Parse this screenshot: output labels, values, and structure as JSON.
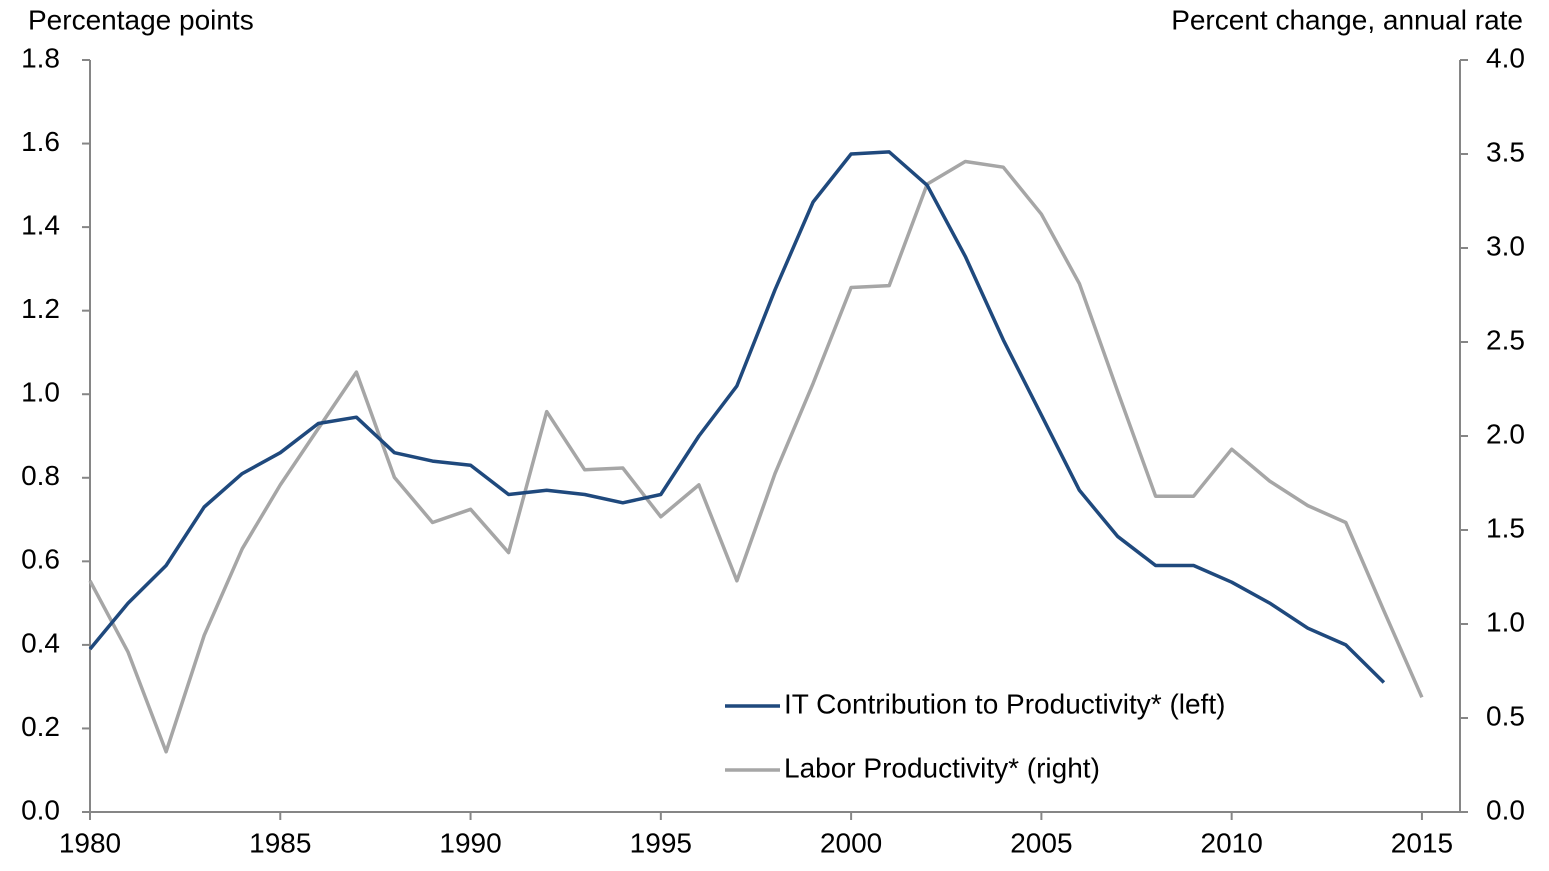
{
  "chart_data": {
    "type": "line",
    "y_label": "Percentage points",
    "y2_label": "Percent change, annual rate",
    "x": [
      1980,
      1981,
      1982,
      1983,
      1984,
      1985,
      1986,
      1987,
      1988,
      1989,
      1990,
      1991,
      1992,
      1993,
      1994,
      1995,
      1996,
      1997,
      1998,
      1999,
      2000,
      2001,
      2002,
      2003,
      2004,
      2005,
      2006,
      2007,
      2008,
      2009,
      2010,
      2011,
      2012,
      2013,
      2014,
      2015
    ],
    "series": [
      {
        "name": "IT Contribution to Productivity* (left)",
        "color": "#1f497d",
        "axis": "y",
        "values": [
          0.39,
          0.5,
          0.59,
          0.73,
          0.81,
          0.86,
          0.93,
          0.945,
          0.86,
          0.84,
          0.83,
          0.76,
          0.77,
          0.76,
          0.74,
          0.76,
          0.9,
          1.02,
          1.25,
          1.46,
          1.575,
          1.58,
          1.5,
          1.33,
          1.13,
          0.95,
          0.77,
          0.66,
          0.59,
          0.59,
          0.55,
          0.5,
          0.44,
          0.4,
          0.31,
          null
        ]
      },
      {
        "name": "Labor Productivity* (right)",
        "color": "#a6a6a6",
        "axis": "y2",
        "values": [
          1.23,
          0.85,
          0.32,
          0.94,
          1.4,
          1.74,
          2.04,
          2.34,
          1.78,
          1.54,
          1.61,
          1.38,
          2.13,
          1.82,
          1.83,
          1.57,
          1.74,
          1.23,
          1.8,
          2.28,
          2.79,
          2.8,
          3.34,
          3.46,
          3.43,
          3.18,
          2.81,
          2.24,
          1.68,
          1.68,
          1.93,
          1.76,
          1.63,
          1.54,
          1.07,
          0.61
        ]
      }
    ],
    "xlim": [
      1980,
      2016
    ],
    "xticks": [
      1980,
      1985,
      1990,
      1995,
      2000,
      2005,
      2010,
      2015
    ],
    "ylim": [
      0,
      1.8
    ],
    "yticks": [
      {
        "value": 0,
        "label": "0.0"
      },
      0.2,
      0.4,
      0.6,
      0.8,
      {
        "value": 1,
        "label": "1.0"
      },
      1.2,
      1.4,
      1.6,
      1.8
    ],
    "y2lim": [
      0,
      4
    ],
    "y2ticks": [
      {
        "value": 0,
        "label": "0.0"
      },
      0.5,
      {
        "value": 1,
        "label": "1.0"
      },
      1.5,
      {
        "value": 2,
        "label": "2.0"
      },
      2.5,
      {
        "value": 3,
        "label": "3.0"
      },
      3.5,
      {
        "value": 4,
        "label": "4.0"
      }
    ],
    "grid": false,
    "legend": "lower right"
  }
}
